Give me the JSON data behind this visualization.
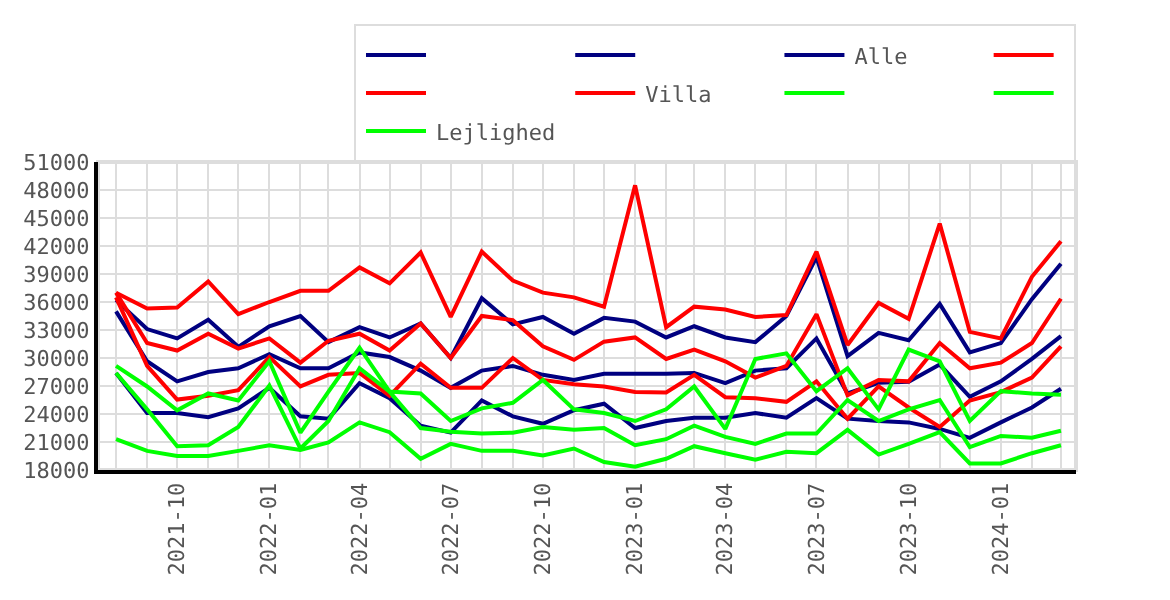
{
  "chart_data": {
    "type": "line",
    "x": [
      "2021-08",
      "2021-09",
      "2021-10",
      "2021-11",
      "2021-12",
      "2022-01",
      "2022-02",
      "2022-03",
      "2022-04",
      "2022-05",
      "2022-06",
      "2022-07",
      "2022-08",
      "2022-09",
      "2022-10",
      "2022-11",
      "2022-12",
      "2023-01",
      "2023-02",
      "2023-03",
      "2023-04",
      "2023-05",
      "2023-06",
      "2023-07",
      "2023-08",
      "2023-09",
      "2023-10",
      "2023-11",
      "2023-12",
      "2024-01",
      "2024-02",
      "2024-03"
    ],
    "series": [
      {
        "color": "#000080",
        "values": [
          36200,
          33100,
          32100,
          34100,
          31200,
          33400,
          34500,
          31700,
          33300,
          32200,
          33700,
          30000,
          36400,
          33600,
          34400,
          32600,
          34300,
          33900,
          32200,
          33400,
          32200,
          31700,
          34500,
          40800,
          30200,
          32700,
          31900,
          35800,
          30600,
          31600,
          36300,
          40100
        ]
      },
      {
        "color": "#000080",
        "values": [
          28400,
          24100,
          24100,
          23650,
          24600,
          26800,
          23750,
          23500,
          27300,
          25700,
          22750,
          22000,
          25450,
          23750,
          22950,
          24400,
          25100,
          22500,
          23250,
          23600,
          23600,
          24100,
          23600,
          25700,
          23500,
          23250,
          23100,
          22400,
          21450,
          23100,
          24700,
          26700
        ]
      },
      {
        "name": "Alle",
        "color": "#000080",
        "values": [
          35000,
          29650,
          27500,
          28500,
          28900,
          30400,
          28900,
          28900,
          30600,
          30100,
          28650,
          26800,
          28650,
          29150,
          28200,
          27650,
          28300,
          28300,
          28300,
          28400,
          27300,
          28650,
          28900,
          32100,
          26200,
          27350,
          27450,
          29300,
          25850,
          27500,
          29900,
          32350
        ]
      },
      {
        "color": "#ff0000",
        "values": [
          37000,
          35300,
          35400,
          38200,
          34700,
          36000,
          37200,
          37200,
          39700,
          38000,
          41300,
          34400,
          41400,
          38300,
          37000,
          36500,
          35500,
          48500,
          33300,
          35500,
          35200,
          34400,
          34600,
          41400,
          31400,
          35900,
          34200,
          44400,
          32800,
          32100,
          38700,
          42500
        ]
      },
      {
        "color": "#ff0000",
        "values": [
          36500,
          29150,
          25550,
          25950,
          26550,
          30100,
          26950,
          28200,
          28400,
          25950,
          29400,
          26800,
          26800,
          30000,
          27650,
          27200,
          26950,
          26350,
          26300,
          28200,
          25800,
          25700,
          25300,
          27500,
          23500,
          26950,
          24700,
          22600,
          25450,
          26350,
          27900,
          31250
        ]
      },
      {
        "name": "Villa",
        "color": "#ff0000",
        "values": [
          37000,
          31600,
          30800,
          32600,
          31000,
          32100,
          29500,
          31850,
          32600,
          30800,
          33700,
          30000,
          34500,
          34050,
          31250,
          29800,
          31750,
          32200,
          29900,
          30900,
          29650,
          27900,
          29150,
          34700,
          26000,
          27650,
          27500,
          31600,
          28900,
          29500,
          31600,
          36350
        ]
      },
      {
        "color": "#00ff00",
        "values": [
          29150,
          26950,
          24400,
          26200,
          25450,
          29650,
          22000,
          26400,
          31100,
          26400,
          26200,
          23250,
          24600,
          25200,
          27650,
          24500,
          24100,
          23250,
          24500,
          26950,
          22400,
          29900,
          30500,
          26450,
          28900,
          24500,
          30900,
          29650,
          23250,
          26450,
          26200,
          26050
        ]
      },
      {
        "color": "#00ff00",
        "values": [
          21300,
          20050,
          19500,
          19500,
          20050,
          20650,
          20150,
          20950,
          23100,
          22050,
          19200,
          20800,
          20050,
          20050,
          19550,
          20300,
          18850,
          18350,
          19200,
          20550,
          19800,
          19100,
          19950,
          19800,
          22300,
          19650,
          20800,
          22050,
          18700,
          18700,
          19800,
          20650
        ]
      },
      {
        "name": "Lejlighed",
        "color": "#00ff00",
        "values": [
          28400,
          24500,
          20550,
          20650,
          22600,
          27050,
          20300,
          23250,
          28900,
          26400,
          22500,
          22100,
          21900,
          22000,
          22600,
          22300,
          22500,
          20650,
          21300,
          22750,
          21550,
          20800,
          21900,
          21900,
          25500,
          23250,
          24500,
          25500,
          20450,
          21650,
          21450,
          22200
        ]
      }
    ],
    "xlim": [
      "2021-07-14",
      "2024-03-16"
    ],
    "xticks": [
      {
        "value": "2021-08",
        "label": null
      },
      {
        "value": "2021-09",
        "label": null
      },
      {
        "value": "2021-10",
        "label": "2021-10"
      },
      {
        "value": "2021-11",
        "label": null
      },
      {
        "value": "2021-12",
        "label": null
      },
      {
        "value": "2022-01",
        "label": "2022-01"
      },
      {
        "value": "2022-02",
        "label": null
      },
      {
        "value": "2022-03",
        "label": null
      },
      {
        "value": "2022-04",
        "label": "2022-04"
      },
      {
        "value": "2022-05",
        "label": null
      },
      {
        "value": "2022-06",
        "label": null
      },
      {
        "value": "2022-07",
        "label": "2022-07"
      },
      {
        "value": "2022-08",
        "label": null
      },
      {
        "value": "2022-09",
        "label": null
      },
      {
        "value": "2022-10",
        "label": "2022-10"
      },
      {
        "value": "2022-11",
        "label": null
      },
      {
        "value": "2022-12",
        "label": null
      },
      {
        "value": "2023-01",
        "label": "2023-01"
      },
      {
        "value": "2023-02",
        "label": null
      },
      {
        "value": "2023-03",
        "label": null
      },
      {
        "value": "2023-04",
        "label": "2023-04"
      },
      {
        "value": "2023-05",
        "label": null
      },
      {
        "value": "2023-06",
        "label": null
      },
      {
        "value": "2023-07",
        "label": "2023-07"
      },
      {
        "value": "2023-08",
        "label": null
      },
      {
        "value": "2023-09",
        "label": null
      },
      {
        "value": "2023-10",
        "label": "2023-10"
      },
      {
        "value": "2023-11",
        "label": null
      },
      {
        "value": "2023-12",
        "label": null
      },
      {
        "value": "2024-01",
        "label": "2024-01"
      },
      {
        "value": "2024-02",
        "label": null
      },
      {
        "value": "2024-03",
        "label": null
      }
    ],
    "ylim": [
      18000,
      51000
    ],
    "yticks": [
      18000,
      21000,
      24000,
      27000,
      30000,
      33000,
      36000,
      39000,
      42000,
      45000,
      48000,
      51000
    ],
    "grid": true,
    "legend": "top right",
    "marker": "none",
    "line_style": "solid"
  }
}
